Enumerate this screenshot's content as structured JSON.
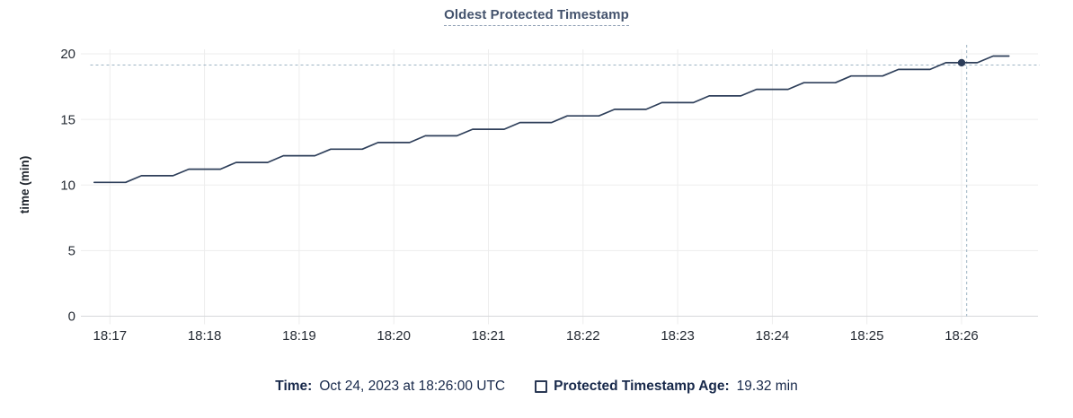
{
  "chart": {
    "title": "Oldest Protected Timestamp",
    "y_axis_label": "time (min)"
  },
  "legend": {
    "time_label": "Time:",
    "time_value": "Oct 24, 2023 at 18:26:00 UTC",
    "series_label": "Protected Timestamp Age:",
    "series_value": "19.32 min"
  },
  "colors": {
    "line": "#2e3f5a",
    "point": "#2b3c59",
    "crosshair": "#9db3c3",
    "grid": "#ededed",
    "axis_line": "#d6d8db",
    "tick_text": "#262c35",
    "title_text": "#44536d",
    "title_underline": "#90a0b5",
    "legend_text": "#17284a"
  },
  "chart_data": {
    "type": "line",
    "title": "Oldest Protected Timestamp",
    "xlabel": "",
    "ylabel": "time (min)",
    "ylim": [
      0,
      20
    ],
    "y_ticks": [
      0,
      5,
      10,
      15,
      20
    ],
    "x_ticks": [
      "18:17",
      "18:18",
      "18:19",
      "18:20",
      "18:21",
      "18:22",
      "18:23",
      "18:24",
      "18:25",
      "18:26"
    ],
    "grid": true,
    "legend_position": "bottom",
    "series": [
      {
        "name": "Protected Timestamp Age",
        "unit": "min",
        "x": [
          "18:16:50",
          "18:17:00",
          "18:17:10",
          "18:17:20",
          "18:17:30",
          "18:17:40",
          "18:17:50",
          "18:18:00",
          "18:18:10",
          "18:18:20",
          "18:18:30",
          "18:18:40",
          "18:18:50",
          "18:19:00",
          "18:19:10",
          "18:19:20",
          "18:19:30",
          "18:19:40",
          "18:19:50",
          "18:20:00",
          "18:20:10",
          "18:20:20",
          "18:20:30",
          "18:20:40",
          "18:20:50",
          "18:21:00",
          "18:21:10",
          "18:21:20",
          "18:21:30",
          "18:21:40",
          "18:21:50",
          "18:22:00",
          "18:22:10",
          "18:22:20",
          "18:22:30",
          "18:22:40",
          "18:22:50",
          "18:23:00",
          "18:23:10",
          "18:23:20",
          "18:23:30",
          "18:23:40",
          "18:23:50",
          "18:24:00",
          "18:24:10",
          "18:24:20",
          "18:24:30",
          "18:24:40",
          "18:24:50",
          "18:25:00",
          "18:25:10",
          "18:25:20",
          "18:25:30",
          "18:25:40",
          "18:25:50",
          "18:26:00",
          "18:26:10",
          "18:26:20",
          "18:26:30"
        ],
        "y": [
          10.2,
          10.2,
          10.2,
          10.71,
          10.71,
          10.71,
          11.21,
          11.21,
          11.21,
          11.72,
          11.72,
          11.72,
          12.23,
          12.23,
          12.23,
          12.73,
          12.73,
          12.73,
          13.24,
          13.24,
          13.24,
          13.75,
          13.75,
          13.75,
          14.25,
          14.25,
          14.25,
          14.76,
          14.76,
          14.76,
          15.27,
          15.27,
          15.27,
          15.77,
          15.77,
          15.77,
          16.28,
          16.28,
          16.28,
          16.79,
          16.79,
          16.79,
          17.29,
          17.29,
          17.29,
          17.8,
          17.8,
          17.8,
          18.31,
          18.31,
          18.31,
          18.81,
          18.81,
          18.81,
          19.32,
          19.32,
          19.32,
          19.83,
          19.83
        ]
      }
    ],
    "hover_point": {
      "x": "18:26:00",
      "y": 19.32
    }
  }
}
